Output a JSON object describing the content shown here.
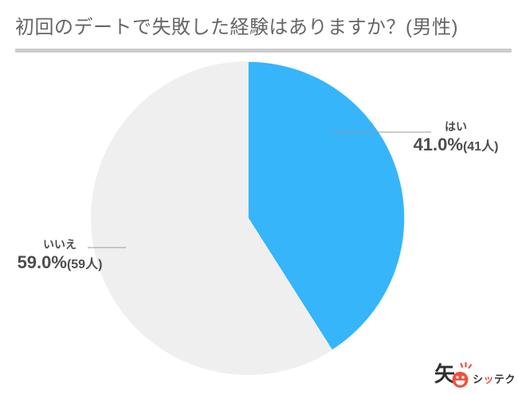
{
  "title": "初回のデートで失敗した経験はありますか？(男性)",
  "chart_data": {
    "type": "pie",
    "title": "初回のデートで失敗した経験はありますか？(男性)",
    "labels": [
      "はい",
      "いいえ"
    ],
    "values": [
      41.0,
      59.0
    ],
    "counts": [
      41,
      59
    ],
    "pct_display": [
      "41.0%",
      "59.0%"
    ],
    "count_display": [
      "(41人)",
      "(59人)"
    ],
    "slice_colors": [
      "#36b5fb",
      "#efefef"
    ],
    "start_angle": "top",
    "direction": "clockwise",
    "label_style": "outside-callout",
    "legend_position": "none"
  },
  "logo": {
    "kanji": "矢",
    "text_pre": "シ",
    "text_accent": "ッ",
    "text_post": "テク",
    "accent_color": "#f2503f"
  },
  "colors": {
    "accent_blue": "#36b5fb",
    "slice_gray": "#efefef",
    "title_gray": "#666666",
    "divider_gray": "#cccccc",
    "label_text": "#4d4d4d",
    "leader_line": "#999999",
    "logo_red": "#f2503f",
    "logo_dark": "#2e2e2e",
    "background": "#ffffff"
  }
}
